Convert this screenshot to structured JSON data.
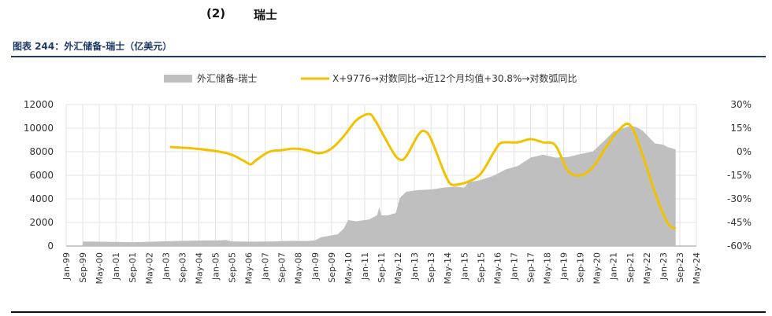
{
  "heading": {
    "number": "(2)",
    "title": "瑞士"
  },
  "caption": "图表 244：外汇储备-瑞士（亿美元）",
  "colors": {
    "area": "#bfbfbf",
    "line": "#f2c200",
    "caption": "#1f3b66",
    "grid": "#e3e3e3"
  },
  "chart_data": {
    "type": "area",
    "legend_position": "top",
    "series": [
      {
        "name": "外汇储备-瑞士",
        "kind": "area",
        "axis": "left",
        "points": [
          [
            "1999-09",
            380
          ],
          [
            "2000-03",
            370
          ],
          [
            "2000-09",
            360
          ],
          [
            "2001-03",
            340
          ],
          [
            "2001-09",
            330
          ],
          [
            "2002-03",
            350
          ],
          [
            "2002-09",
            380
          ],
          [
            "2003-03",
            420
          ],
          [
            "2003-09",
            440
          ],
          [
            "2004-03",
            460
          ],
          [
            "2004-09",
            470
          ],
          [
            "2005-03",
            480
          ],
          [
            "2005-06",
            520
          ],
          [
            "2005-09",
            390
          ],
          [
            "2006-03",
            370
          ],
          [
            "2006-09",
            370
          ],
          [
            "2007-03",
            380
          ],
          [
            "2007-09",
            420
          ],
          [
            "2008-03",
            440
          ],
          [
            "2008-09",
            430
          ],
          [
            "2009-01",
            480
          ],
          [
            "2009-04",
            750
          ],
          [
            "2009-09",
            900
          ],
          [
            "2009-12",
            1000
          ],
          [
            "2010-03",
            1500
          ],
          [
            "2010-05",
            2200
          ],
          [
            "2010-09",
            2100
          ],
          [
            "2011-03",
            2250
          ],
          [
            "2011-07",
            2600
          ],
          [
            "2011-08",
            3300
          ],
          [
            "2011-09",
            2600
          ],
          [
            "2011-12",
            2600
          ],
          [
            "2012-04",
            2800
          ],
          [
            "2012-06",
            4100
          ],
          [
            "2012-09",
            4600
          ],
          [
            "2013-03",
            4750
          ],
          [
            "2013-09",
            4800
          ],
          [
            "2014-03",
            4950
          ],
          [
            "2014-09",
            5050
          ],
          [
            "2015-01",
            4950
          ],
          [
            "2015-03",
            5400
          ],
          [
            "2015-09",
            5600
          ],
          [
            "2016-03",
            5950
          ],
          [
            "2016-09",
            6500
          ],
          [
            "2017-03",
            6800
          ],
          [
            "2017-09",
            7500
          ],
          [
            "2018-03",
            7750
          ],
          [
            "2018-09",
            7500
          ],
          [
            "2019-03",
            7550
          ],
          [
            "2019-09",
            7800
          ],
          [
            "2020-03",
            8000
          ],
          [
            "2020-09",
            9000
          ],
          [
            "2021-01",
            9700
          ],
          [
            "2021-09",
            10200
          ],
          [
            "2021-12",
            10100
          ],
          [
            "2022-03",
            9800
          ],
          [
            "2022-09",
            8700
          ],
          [
            "2023-01",
            8600
          ],
          [
            "2023-03",
            8400
          ],
          [
            "2023-07",
            8200
          ]
        ]
      },
      {
        "name": "X+9776→对数同比→近12个月均值+30.8%→对数弧同比",
        "kind": "line",
        "axis": "right",
        "points": [
          [
            "2003-03",
            3
          ],
          [
            "2004-03",
            2
          ],
          [
            "2005-03",
            0
          ],
          [
            "2005-09",
            -2
          ],
          [
            "2006-03",
            -6
          ],
          [
            "2006-06",
            -8
          ],
          [
            "2006-09",
            -5
          ],
          [
            "2007-03",
            0
          ],
          [
            "2007-09",
            1
          ],
          [
            "2008-03",
            2
          ],
          [
            "2008-09",
            1
          ],
          [
            "2009-03",
            -1
          ],
          [
            "2009-09",
            2
          ],
          [
            "2010-03",
            10
          ],
          [
            "2010-09",
            20
          ],
          [
            "2011-03",
            24
          ],
          [
            "2011-06",
            20
          ],
          [
            "2011-09",
            13
          ],
          [
            "2012-03",
            -1
          ],
          [
            "2012-06",
            -5
          ],
          [
            "2012-09",
            -3
          ],
          [
            "2013-03",
            11
          ],
          [
            "2013-06",
            13
          ],
          [
            "2013-09",
            8
          ],
          [
            "2014-03",
            -12
          ],
          [
            "2014-06",
            -20
          ],
          [
            "2014-09",
            -21
          ],
          [
            "2015-03",
            -19
          ],
          [
            "2015-09",
            -14
          ],
          [
            "2016-03",
            -1
          ],
          [
            "2016-06",
            5
          ],
          [
            "2016-09",
            6
          ],
          [
            "2017-03",
            6
          ],
          [
            "2017-09",
            8
          ],
          [
            "2018-03",
            6
          ],
          [
            "2018-09",
            4
          ],
          [
            "2019-03",
            -12
          ],
          [
            "2019-09",
            -15
          ],
          [
            "2020-03",
            -10
          ],
          [
            "2020-09",
            2
          ],
          [
            "2021-03",
            13
          ],
          [
            "2021-09",
            17
          ],
          [
            "2022-03",
            -2
          ],
          [
            "2022-09",
            -26
          ],
          [
            "2023-03",
            -45
          ],
          [
            "2023-07",
            -49
          ]
        ]
      }
    ],
    "y_left": {
      "min": 0,
      "max": 12000,
      "ticks": [
        "0",
        "2000",
        "4000",
        "6000",
        "8000",
        "10000",
        "12000"
      ]
    },
    "y_right": {
      "min": -60,
      "max": 30,
      "ticks": [
        "-60%",
        "-45%",
        "-30%",
        "-15%",
        "0%",
        "15%",
        "30%"
      ]
    },
    "x_ticks": [
      "Jan-99",
      "Sep-99",
      "May-00",
      "Jan-01",
      "Sep-01",
      "May-02",
      "Jan-03",
      "Sep-03",
      "May-04",
      "Jan-05",
      "Sep-05",
      "May-06",
      "Jan-07",
      "Sep-07",
      "May-08",
      "Jan-09",
      "Sep-09",
      "May-10",
      "Jan-11",
      "Sep-11",
      "May-12",
      "Jan-13",
      "Sep-13",
      "May-14",
      "Jan-15",
      "Sep-15",
      "May-16",
      "Jan-17",
      "Sep-17",
      "May-18",
      "Jan-19",
      "Sep-19",
      "May-20",
      "Jan-21",
      "Sep-21",
      "May-22",
      "Jan-23",
      "Sep-23",
      "May-24"
    ],
    "grid": true
  }
}
